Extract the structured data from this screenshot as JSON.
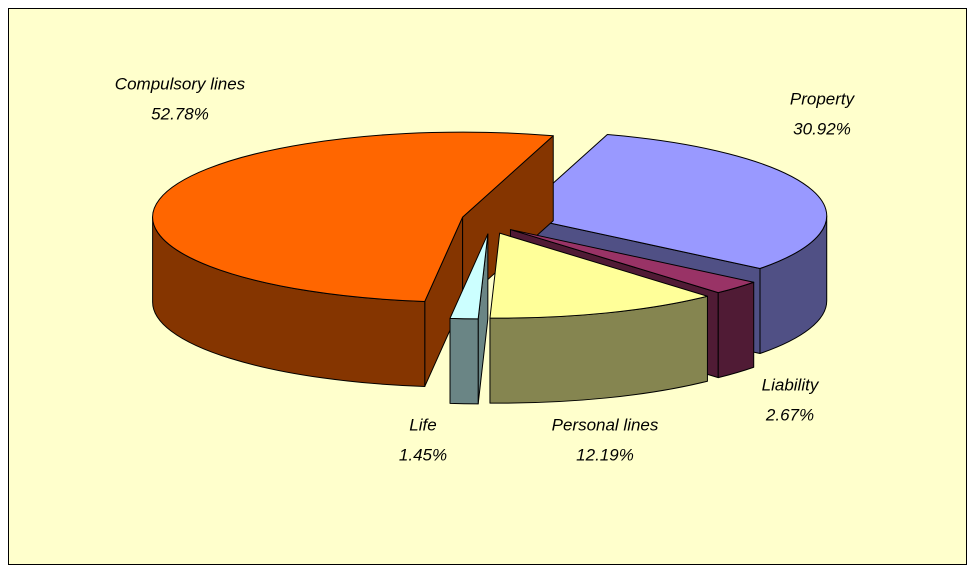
{
  "chart_data": {
    "type": "pie",
    "categories": [
      "Property",
      "Liability",
      "Personal lines",
      "Life",
      "Compulsory lines"
    ],
    "values": [
      30.92,
      2.67,
      12.19,
      1.45,
      52.78
    ],
    "value_labels": [
      "30.92%",
      "2.67%",
      "12.19%",
      "1.45%",
      "52.78%"
    ],
    "colors": [
      "#9999ff",
      "#993366",
      "#ffff99",
      "#ccffff",
      "#ff6600"
    ],
    "startangle": 17,
    "exploded": true,
    "three_d": true
  }
}
